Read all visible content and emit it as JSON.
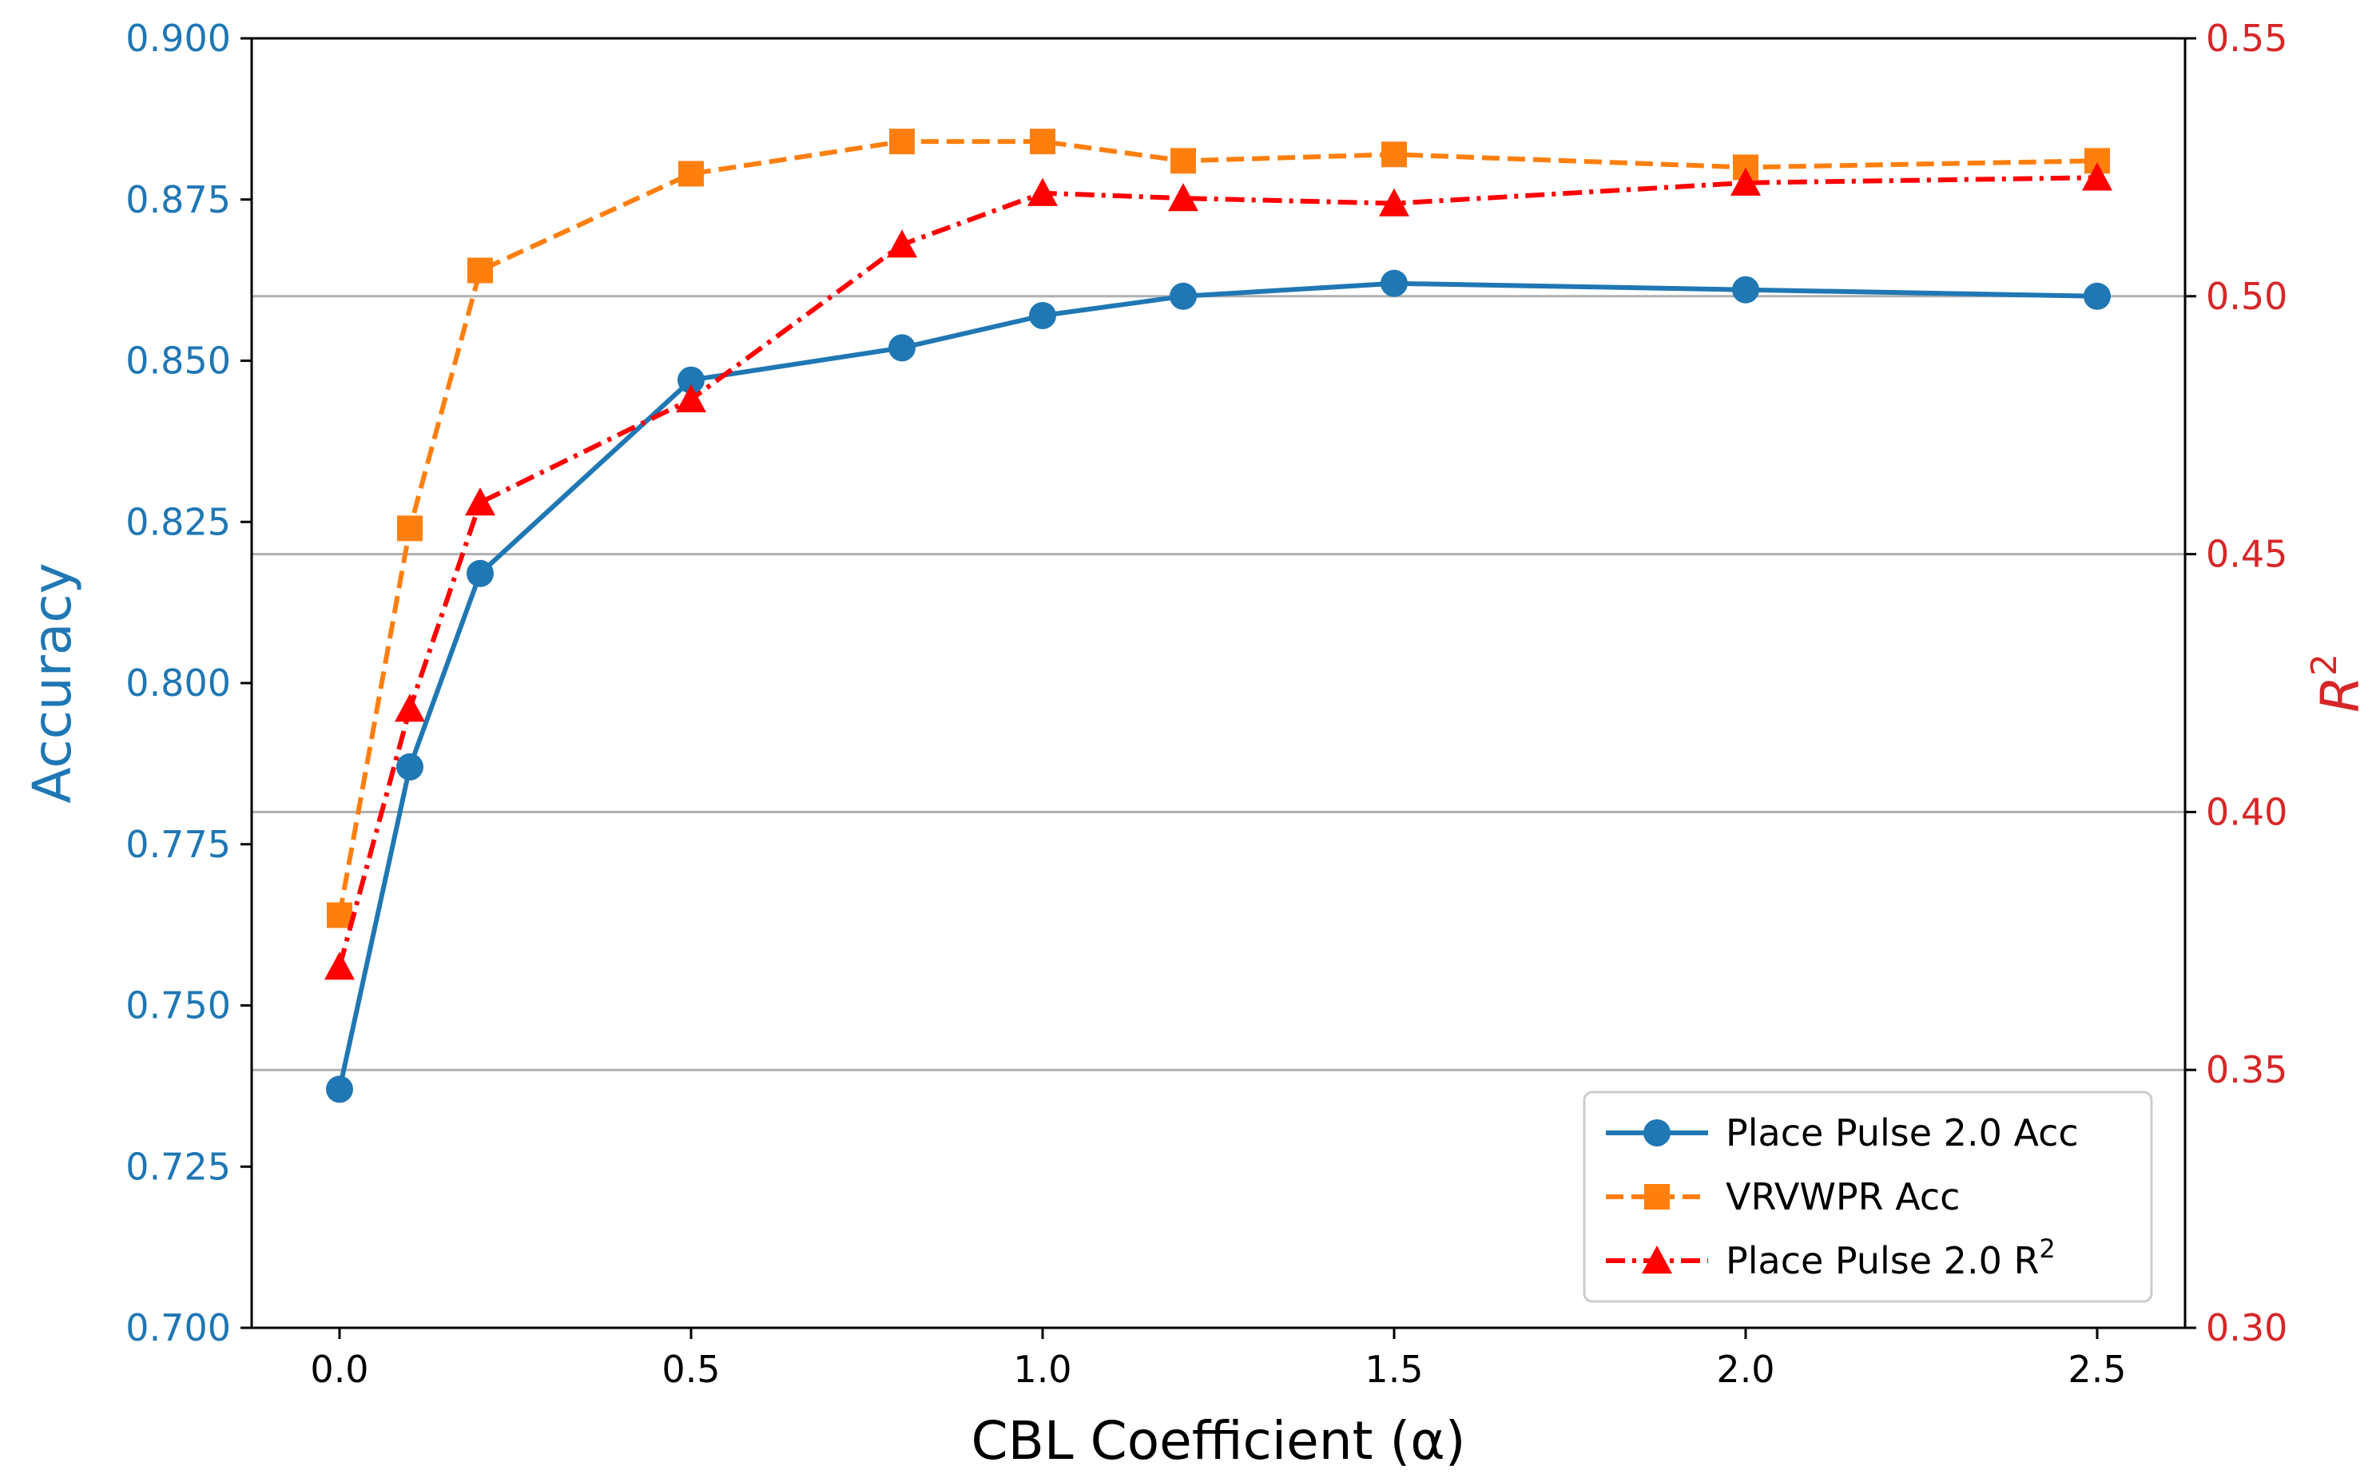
{
  "chart_data": {
    "type": "line",
    "x": [
      0.0,
      0.1,
      0.2,
      0.5,
      0.8,
      1.0,
      1.2,
      1.5,
      2.0,
      2.5
    ],
    "xlabel": "CBL Coefficient (α)",
    "xlim": [
      -0.125,
      2.625
    ],
    "xticks": [
      0.0,
      0.5,
      1.0,
      1.5,
      2.0,
      2.5
    ],
    "xtick_labels": [
      "0.0",
      "0.5",
      "1.0",
      "1.5",
      "2.0",
      "2.5"
    ],
    "ylabel_left": "Accuracy",
    "ylim_left": [
      0.7,
      0.9
    ],
    "yticks_left": [
      0.7,
      0.725,
      0.75,
      0.775,
      0.8,
      0.825,
      0.85,
      0.875,
      0.9
    ],
    "ytick_labels_left": [
      "0.700",
      "0.725",
      "0.750",
      "0.775",
      "0.800",
      "0.825",
      "0.850",
      "0.875",
      "0.900"
    ],
    "ylabel_right_base": "R",
    "ylabel_right_sup": "2",
    "ylim_right": [
      0.3,
      0.55
    ],
    "yticks_right": [
      0.3,
      0.35,
      0.4,
      0.45,
      0.5,
      0.55
    ],
    "ytick_labels_right": [
      "0.30",
      "0.35",
      "0.40",
      "0.45",
      "0.50",
      "0.55"
    ],
    "grid": "horizontal lines at right-axis ticks",
    "legend_position": "lower right",
    "series": [
      {
        "name": "Place Pulse 2.0 Acc",
        "axis": "left",
        "values": [
          0.737,
          0.787,
          0.817,
          0.847,
          0.852,
          0.857,
          0.86,
          0.862,
          0.861,
          0.86
        ],
        "color": "#1f77b4",
        "marker": "circle",
        "linestyle": "solid"
      },
      {
        "name": "VRVWPR Acc",
        "axis": "left",
        "values": [
          0.764,
          0.824,
          0.864,
          0.879,
          0.884,
          0.884,
          0.881,
          0.882,
          0.88,
          0.881
        ],
        "color": "#ff7f0e",
        "marker": "square",
        "linestyle": "dashed"
      },
      {
        "name": "Place Pulse 2.0 R",
        "name_sup": "2",
        "axis": "right",
        "values": [
          0.37,
          0.42,
          0.46,
          0.48,
          0.51,
          0.52,
          0.519,
          0.518,
          0.522,
          0.523
        ],
        "color": "#ff0000",
        "marker": "triangle",
        "linestyle": "dashdot"
      }
    ],
    "left_axis_color": "#1f77b4",
    "right_axis_color": "#d62728"
  }
}
